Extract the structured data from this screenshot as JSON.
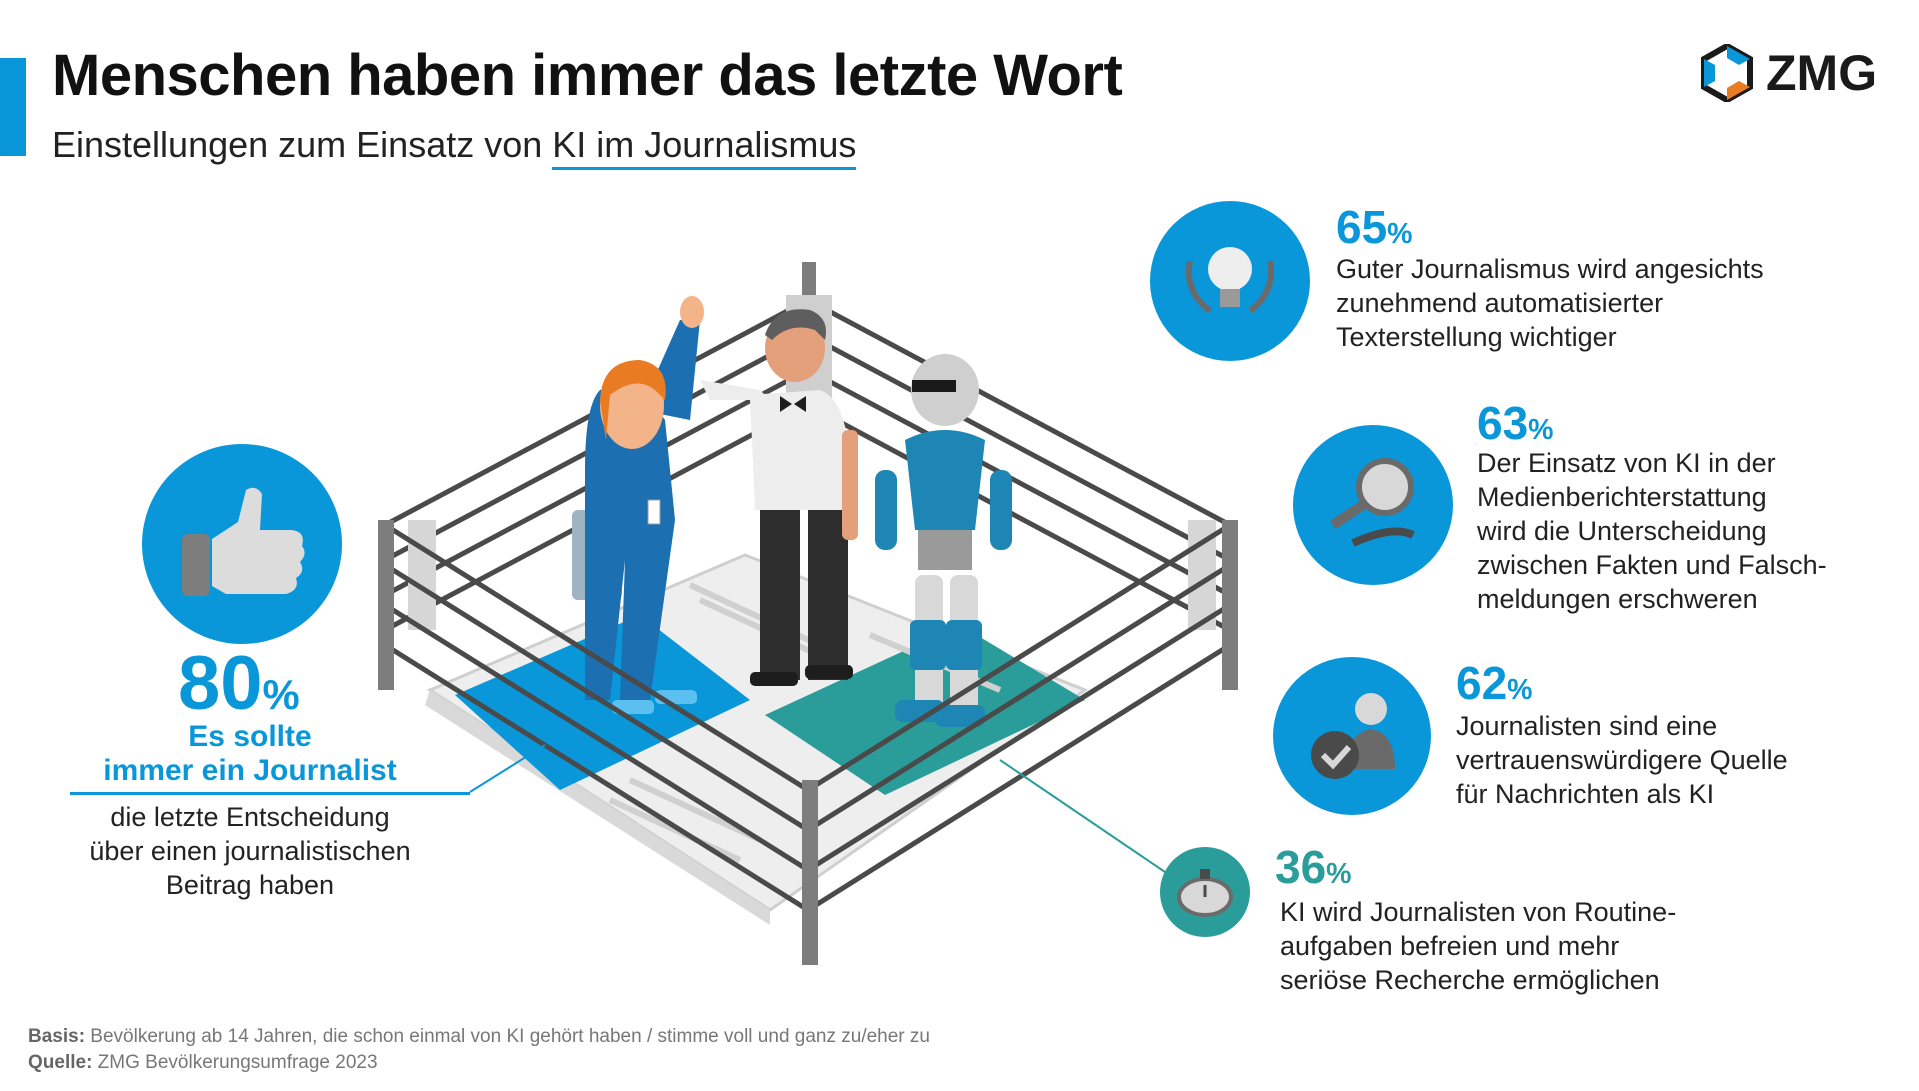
{
  "header": {
    "title": "Menschen haben immer das letzte Wort",
    "subtitle_prefix": "Einstellungen zum Einsatz von ",
    "subtitle_highlight": "KI im Journalismus"
  },
  "logo": {
    "text": "ZMG"
  },
  "main_stat": {
    "value": "80",
    "unit": "%",
    "bold_lines": [
      "Es sollte",
      "immer ein Journalist"
    ],
    "text_lines": [
      "die letzte Entscheidung",
      "über einen journalistischen",
      "Beitrag haben"
    ],
    "icon": "thumbs-up-icon"
  },
  "stats": [
    {
      "value": "65",
      "unit": "%",
      "icon": "lightbulb-laurel-icon",
      "lines": [
        "Guter Journalismus wird angesichts",
        "zunehmend automatisierter",
        "Texterstellung wichtiger"
      ]
    },
    {
      "value": "63",
      "unit": "%",
      "icon": "magnifier-question-icon",
      "lines": [
        "Der Einsatz von KI in der",
        "Medienberichterstattung",
        "wird die Unterscheidung",
        "zwischen Fakten und Falsch-",
        "meldungen erschweren"
      ]
    },
    {
      "value": "62",
      "unit": "%",
      "icon": "journalist-checkmark-icon",
      "lines": [
        "Journalisten sind eine",
        "vertrauenswürdigere Quelle",
        "für Nachrichten als KI"
      ]
    },
    {
      "value": "36",
      "unit": "%",
      "icon": "stopwatch-icon",
      "lines": [
        "KI wird Journalisten von Routine-",
        "aufgaben befreien und mehr",
        "seriöse Recherche ermöglichen"
      ]
    }
  ],
  "footer": {
    "basis_label": "Basis:",
    "basis_text": " Bevölkerung ab 14 Jahren, die schon einmal von KI gehört haben / stimme voll und ganz zu/eher zu",
    "source_label": "Quelle:",
    "source_text": " ZMG Bevölkerungsumfrage 2023"
  },
  "colors": {
    "accent": "#0a97d9",
    "teal": "#2a9d9a",
    "text": "#222222",
    "footer": "#777777"
  }
}
